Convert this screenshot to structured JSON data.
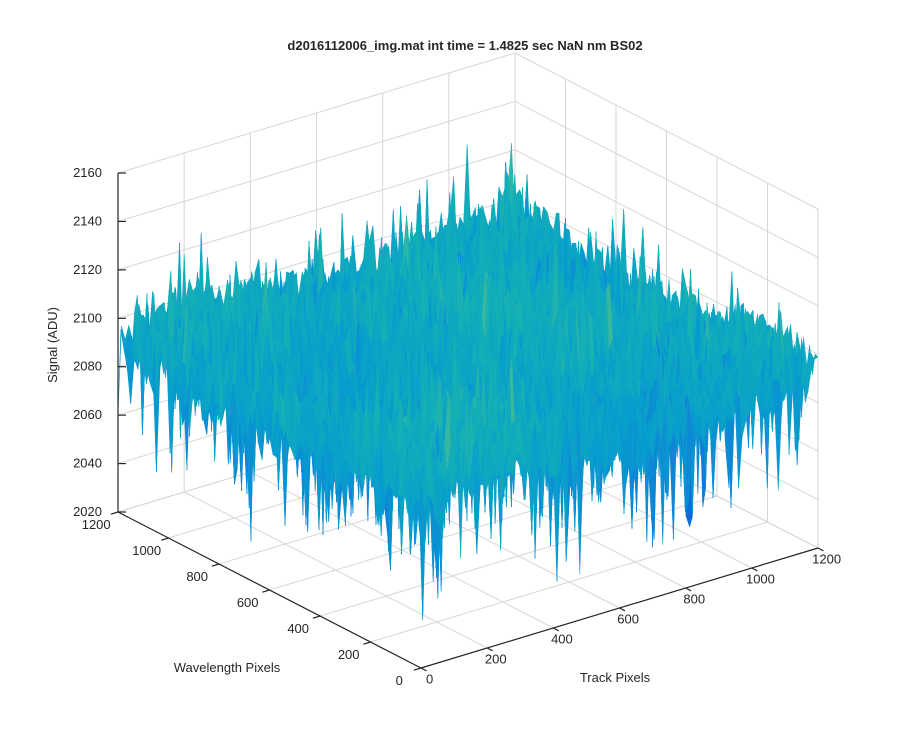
{
  "chart_data": {
    "type": "surface",
    "title": "d2016112006_img.mat int time = 1.4825 sec  NaN nm BS02",
    "xlabel": "Track Pixels",
    "ylabel": "Wavelength Pixels",
    "zlabel": "Signal (ADU)",
    "xlim": [
      0,
      1200
    ],
    "ylim": [
      0,
      1200
    ],
    "zlim": [
      2020,
      2160
    ],
    "x_ticks": [
      "0",
      "200",
      "400",
      "600",
      "800",
      "1000",
      "1200"
    ],
    "y_ticks": [
      "0",
      "200",
      "400",
      "600",
      "800",
      "1000",
      "1200"
    ],
    "z_ticks": [
      "2020",
      "2040",
      "2060",
      "2080",
      "2100",
      "2120",
      "2140",
      "2160"
    ],
    "grid": true,
    "colormap": "parula",
    "surface_level_mean": 2090,
    "surface_noise_range": [
      2030,
      2150
    ]
  }
}
